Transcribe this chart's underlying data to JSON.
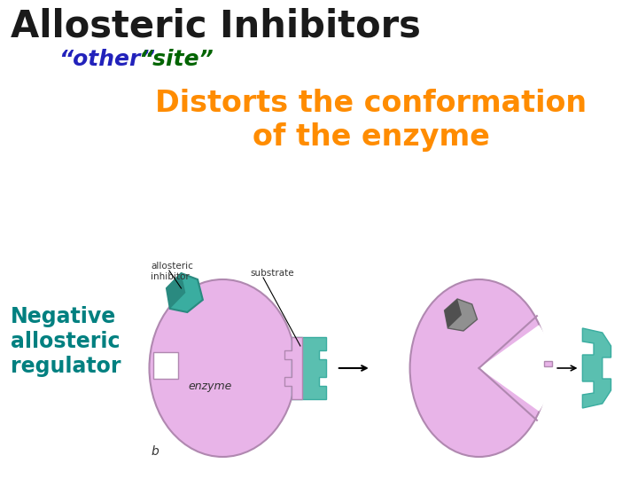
{
  "title": "Allosteric Inhibitors",
  "title_color": "#1a1a1a",
  "title_fontsize": 30,
  "other_text": "“other”",
  "other_color": "#2222bb",
  "site_text": "“site”",
  "site_color": "#006400",
  "subtitle_fontsize": 18,
  "distorts_line1": "Distorts the conformation",
  "distorts_line2": "of the enzyme",
  "distorts_color": "#ff8c00",
  "distorts_fontsize": 24,
  "negative_text": "Negative\nallosteric\nregulator",
  "negative_color": "#008080",
  "negative_fontsize": 17,
  "bg_color": "#ffffff",
  "enzyme_color": "#e8b4e8",
  "enzyme_outline": "#b088b0",
  "inhibitor_color": "#3aada0",
  "inhibitor_dark": "#2a8a80",
  "substrate_color": "#5abfb0",
  "substrate_dark": "#3aada0",
  "gray_color": "#909090",
  "label_color": "#333333",
  "b_label": "b",
  "allosteric_label": "allosteric\ninhibitor",
  "substrate_label": "substrate",
  "enzyme_label": "enzyme"
}
